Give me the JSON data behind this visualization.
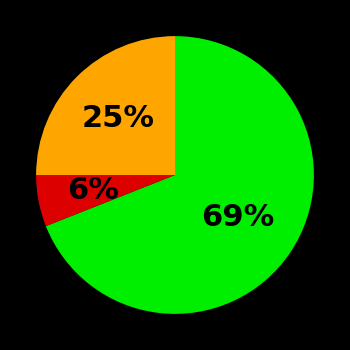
{
  "slices": [
    69,
    6,
    25
  ],
  "labels": [
    "69%",
    "6%",
    "25%"
  ],
  "colors": [
    "#00ee00",
    "#dd0000",
    "#ffa500"
  ],
  "background_color": "#000000",
  "label_fontsize": 22,
  "label_fontweight": "bold",
  "startangle": 90,
  "counterclock": false,
  "label_radii": [
    0.55,
    0.6,
    0.58
  ],
  "figsize": [
    3.5,
    3.5
  ],
  "dpi": 100
}
